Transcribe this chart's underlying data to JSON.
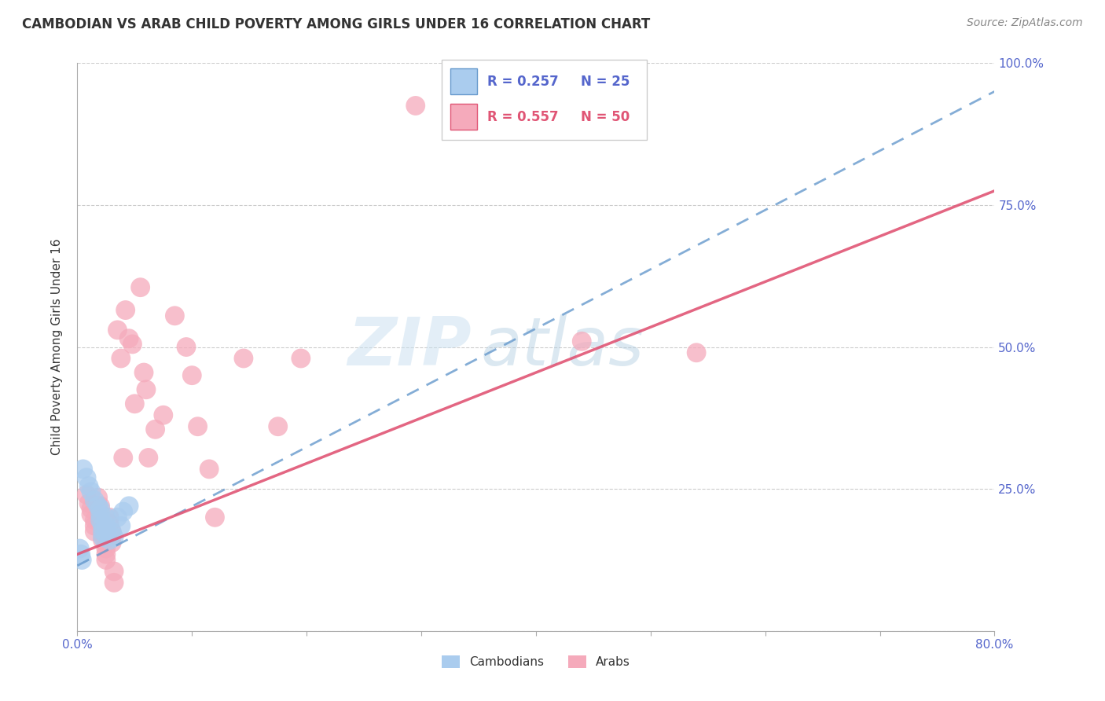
{
  "title": "CAMBODIAN VS ARAB CHILD POVERTY AMONG GIRLS UNDER 16 CORRELATION CHART",
  "source": "Source: ZipAtlas.com",
  "ylabel": "Child Poverty Among Girls Under 16",
  "xlim": [
    0.0,
    0.8
  ],
  "ylim": [
    0.0,
    1.0
  ],
  "xticks": [
    0.0,
    0.1,
    0.2,
    0.3,
    0.4,
    0.5,
    0.6,
    0.7,
    0.8
  ],
  "xticklabels": [
    "0.0%",
    "",
    "",
    "",
    "",
    "",
    "",
    "",
    "80.0%"
  ],
  "ytick_positions": [
    0.0,
    0.25,
    0.5,
    0.75,
    1.0
  ],
  "ytick_labels_right": [
    "",
    "25.0%",
    "50.0%",
    "75.0%",
    "100.0%"
  ],
  "cambodian_color": "#aaccee",
  "arab_color": "#f5aabb",
  "trendline_cambodian_color": "#6699cc",
  "trendline_arab_color": "#e05575",
  "watermark_zip": "ZIP",
  "watermark_atlas": "atlas",
  "background_color": "#ffffff",
  "grid_color": "#cccccc",
  "cambodian_scatter": [
    [
      0.005,
      0.285
    ],
    [
      0.008,
      0.27
    ],
    [
      0.01,
      0.255
    ],
    [
      0.012,
      0.245
    ],
    [
      0.015,
      0.23
    ],
    [
      0.018,
      0.22
    ],
    [
      0.02,
      0.215
    ],
    [
      0.02,
      0.205
    ],
    [
      0.02,
      0.195
    ],
    [
      0.022,
      0.185
    ],
    [
      0.022,
      0.175
    ],
    [
      0.022,
      0.165
    ],
    [
      0.025,
      0.2
    ],
    [
      0.025,
      0.185
    ],
    [
      0.025,
      0.17
    ],
    [
      0.028,
      0.16
    ],
    [
      0.03,
      0.175
    ],
    [
      0.032,
      0.165
    ],
    [
      0.035,
      0.2
    ],
    [
      0.038,
      0.185
    ],
    [
      0.04,
      0.21
    ],
    [
      0.045,
      0.22
    ],
    [
      0.002,
      0.145
    ],
    [
      0.003,
      0.135
    ],
    [
      0.004,
      0.125
    ]
  ],
  "arab_scatter": [
    [
      0.008,
      0.24
    ],
    [
      0.01,
      0.225
    ],
    [
      0.012,
      0.215
    ],
    [
      0.012,
      0.205
    ],
    [
      0.015,
      0.195
    ],
    [
      0.015,
      0.185
    ],
    [
      0.015,
      0.175
    ],
    [
      0.018,
      0.235
    ],
    [
      0.02,
      0.22
    ],
    [
      0.02,
      0.2
    ],
    [
      0.02,
      0.19
    ],
    [
      0.022,
      0.18
    ],
    [
      0.022,
      0.17
    ],
    [
      0.022,
      0.16
    ],
    [
      0.025,
      0.155
    ],
    [
      0.025,
      0.145
    ],
    [
      0.025,
      0.135
    ],
    [
      0.025,
      0.125
    ],
    [
      0.028,
      0.2
    ],
    [
      0.028,
      0.19
    ],
    [
      0.03,
      0.175
    ],
    [
      0.03,
      0.165
    ],
    [
      0.03,
      0.155
    ],
    [
      0.032,
      0.105
    ],
    [
      0.032,
      0.085
    ],
    [
      0.035,
      0.53
    ],
    [
      0.038,
      0.48
    ],
    [
      0.04,
      0.305
    ],
    [
      0.042,
      0.565
    ],
    [
      0.045,
      0.515
    ],
    [
      0.048,
      0.505
    ],
    [
      0.05,
      0.4
    ],
    [
      0.055,
      0.605
    ],
    [
      0.058,
      0.455
    ],
    [
      0.06,
      0.425
    ],
    [
      0.062,
      0.305
    ],
    [
      0.068,
      0.355
    ],
    [
      0.075,
      0.38
    ],
    [
      0.085,
      0.555
    ],
    [
      0.095,
      0.5
    ],
    [
      0.1,
      0.45
    ],
    [
      0.105,
      0.36
    ],
    [
      0.115,
      0.285
    ],
    [
      0.12,
      0.2
    ],
    [
      0.145,
      0.48
    ],
    [
      0.175,
      0.36
    ],
    [
      0.195,
      0.48
    ],
    [
      0.295,
      0.925
    ],
    [
      0.44,
      0.51
    ],
    [
      0.54,
      0.49
    ]
  ],
  "cambodian_trendline_x": [
    0.0,
    0.8
  ],
  "cambodian_trendline_y": [
    0.115,
    0.95
  ],
  "arab_trendline_x": [
    0.0,
    0.8
  ],
  "arab_trendline_y": [
    0.135,
    0.775
  ]
}
